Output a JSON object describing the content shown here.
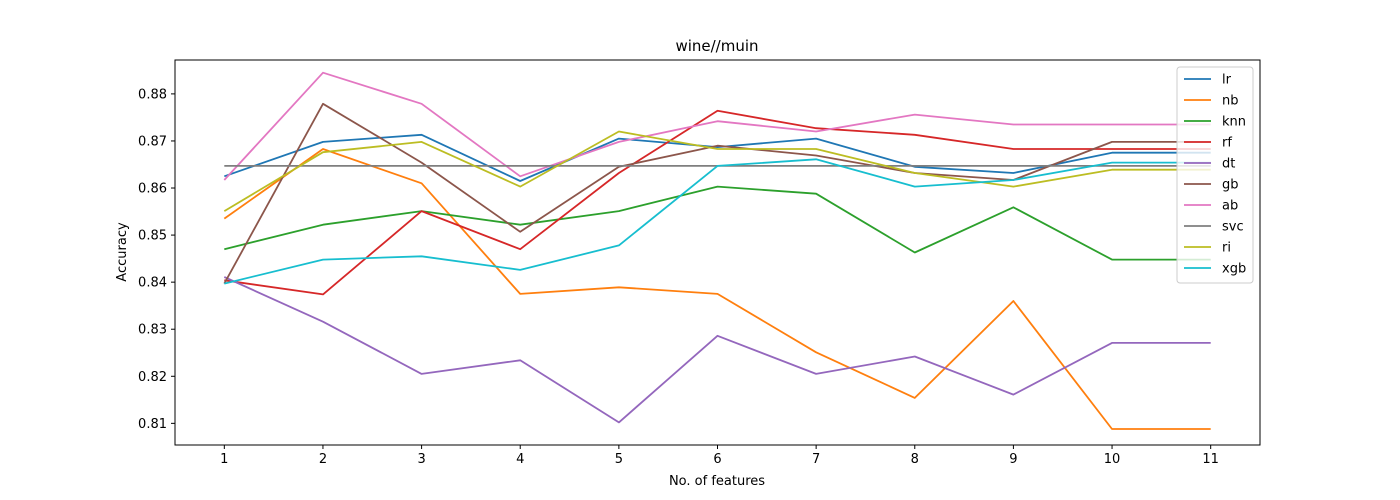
{
  "chart_data": {
    "type": "line",
    "title": "wine//muin",
    "xlabel": "No. of features",
    "ylabel": "Accuracy",
    "x": [
      1,
      2,
      3,
      4,
      5,
      6,
      7,
      8,
      9,
      10,
      11
    ],
    "xticks": [
      "1",
      "2",
      "3",
      "4",
      "5",
      "6",
      "7",
      "8",
      "9",
      "10",
      "11"
    ],
    "yticks": [
      "0.81",
      "0.82",
      "0.83",
      "0.84",
      "0.85",
      "0.86",
      "0.87",
      "0.88"
    ],
    "ytick_values": [
      0.81,
      0.82,
      0.83,
      0.84,
      0.85,
      0.86,
      0.87,
      0.88
    ],
    "xlim": [
      0.5,
      11.5
    ],
    "ylim": [
      0.8054,
      0.8872
    ],
    "grid": false,
    "legend_position": "top-right",
    "series": [
      {
        "name": "lr",
        "color": "#1f77b4",
        "values": [
          0.8625,
          0.8698,
          0.8713,
          0.8615,
          0.8705,
          0.8687,
          0.8705,
          0.8645,
          0.8632,
          0.8675,
          0.8675
        ]
      },
      {
        "name": "nb",
        "color": "#ff7f0e",
        "values": [
          0.8535,
          0.8683,
          0.861,
          0.8375,
          0.8389,
          0.8375,
          0.8251,
          0.8154,
          0.836,
          0.8088,
          0.8088
        ]
      },
      {
        "name": "knn",
        "color": "#2ca02c",
        "values": [
          0.847,
          0.8522,
          0.8551,
          0.8522,
          0.8551,
          0.8603,
          0.8588,
          0.8463,
          0.8559,
          0.8448,
          0.8448
        ]
      },
      {
        "name": "rf",
        "color": "#d62728",
        "values": [
          0.8404,
          0.8374,
          0.8551,
          0.847,
          0.8632,
          0.8764,
          0.8727,
          0.8713,
          0.8683,
          0.8683,
          0.8683
        ]
      },
      {
        "name": "dt",
        "color": "#9467bd",
        "values": [
          0.8411,
          0.8316,
          0.8205,
          0.8234,
          0.8102,
          0.8286,
          0.8205,
          0.8242,
          0.8161,
          0.8271,
          0.8271
        ]
      },
      {
        "name": "gb",
        "color": "#8c564b",
        "values": [
          0.8397,
          0.8779,
          0.8654,
          0.8507,
          0.8645,
          0.869,
          0.8669,
          0.8632,
          0.8617,
          0.8698,
          0.8698
        ]
      },
      {
        "name": "ab",
        "color": "#e377c2",
        "values": [
          0.8617,
          0.8845,
          0.8779,
          0.8625,
          0.8698,
          0.8742,
          0.872,
          0.8756,
          0.8735,
          0.8735,
          0.8735
        ]
      },
      {
        "name": "svc",
        "color": "#7f7f7f",
        "values": [
          0.8647,
          0.8647,
          0.8647,
          0.8647,
          0.8647,
          0.8647,
          0.8647,
          0.8647,
          0.8647,
          0.8647,
          0.8647
        ]
      },
      {
        "name": "ri",
        "color": "#bcbd22",
        "values": [
          0.8551,
          0.8676,
          0.8698,
          0.8603,
          0.872,
          0.8683,
          0.8683,
          0.8632,
          0.8603,
          0.8639,
          0.8639
        ]
      },
      {
        "name": "xgb",
        "color": "#17becf",
        "values": [
          0.8397,
          0.8448,
          0.8455,
          0.8426,
          0.8478,
          0.8647,
          0.8661,
          0.8603,
          0.8617,
          0.8654,
          0.8654
        ]
      }
    ]
  }
}
